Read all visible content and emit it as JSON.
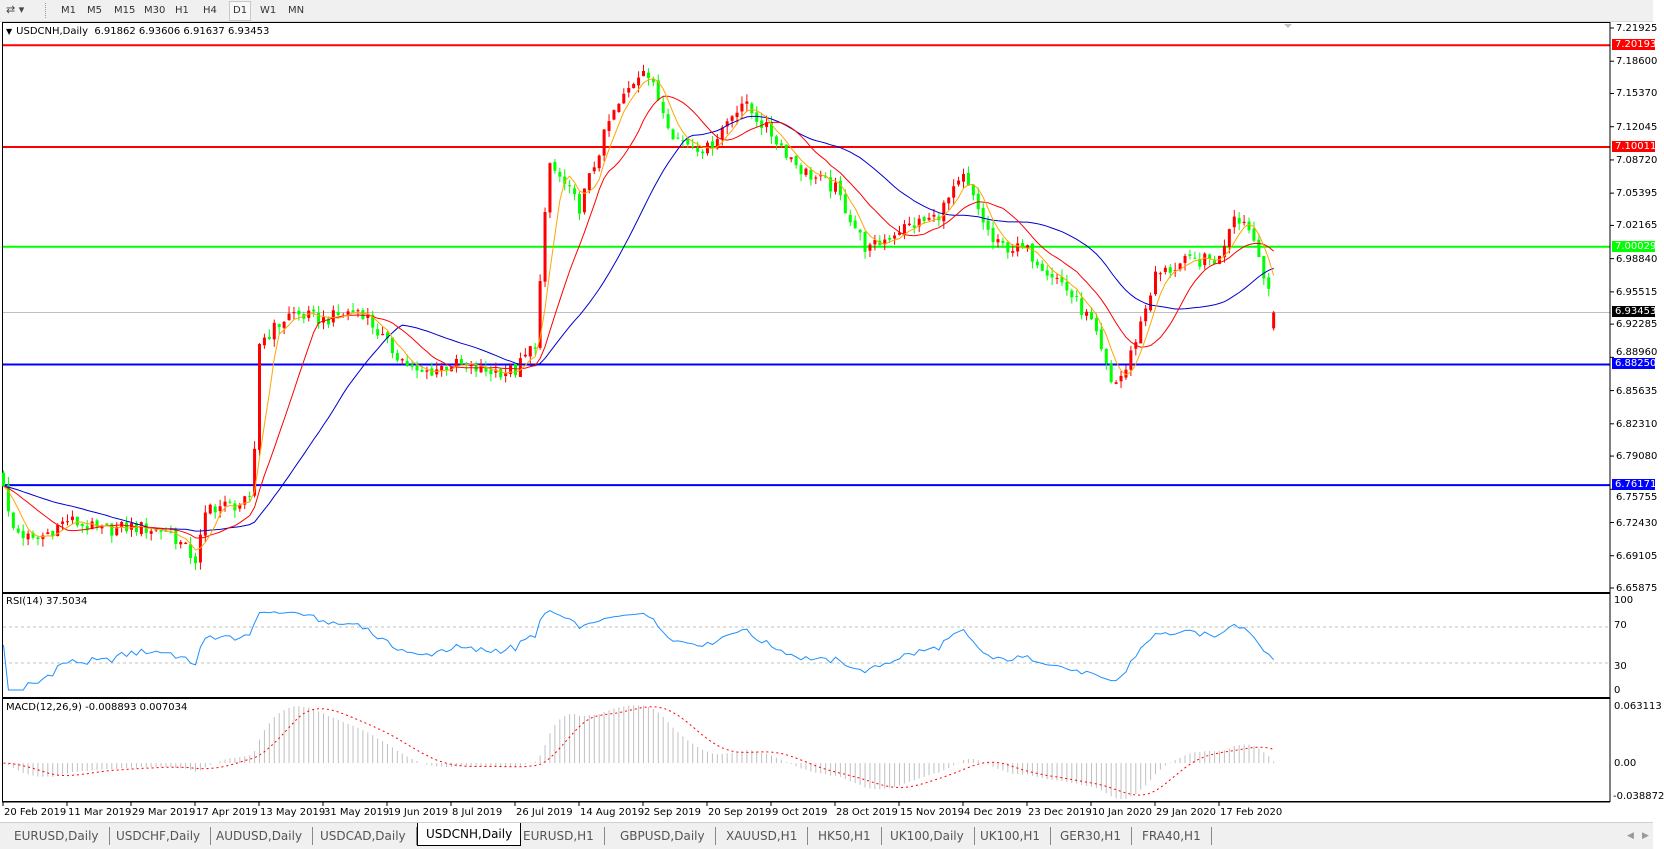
{
  "toolbar": {
    "chart_tools_icon": "line-tools-icon",
    "timeframes": [
      {
        "label": "M1",
        "active": false
      },
      {
        "label": "M5",
        "active": false
      },
      {
        "label": "M15",
        "active": false
      },
      {
        "label": "M30",
        "active": false
      },
      {
        "label": "H1",
        "active": false
      },
      {
        "label": "H4",
        "active": false
      },
      {
        "label": "D1",
        "active": true
      },
      {
        "label": "W1",
        "active": false
      },
      {
        "label": "MN",
        "active": false
      }
    ]
  },
  "chart": {
    "symbol_label": "USDCNH,Daily",
    "ohlc_label": "6.91862 6.93606 6.91637 6.93453",
    "price_ticks": [
      "7.21925",
      "7.18600",
      "7.15370",
      "7.12045",
      "7.08720",
      "7.05395",
      "7.02165",
      "6.98840",
      "6.95515",
      "6.92285",
      "6.88960",
      "6.85635",
      "6.82310",
      "6.79080",
      "6.75755",
      "6.72430",
      "6.69105",
      "6.65875"
    ],
    "levels": [
      {
        "label": "7.20193",
        "price": 7.20193,
        "color": "#ff0000"
      },
      {
        "label": "7.10011",
        "price": 7.10011,
        "color": "#ff0000"
      },
      {
        "label": "7.00029",
        "price": 7.00029,
        "color": "#00ff00"
      },
      {
        "label": "6.88250",
        "price": 6.8825,
        "color": "#0000ff"
      },
      {
        "label": "6.76171",
        "price": 6.76171,
        "color": "#0000ff"
      }
    ],
    "current_price": {
      "label": "6.93453",
      "price": 6.93453,
      "color": "#000000"
    },
    "colors": {
      "bull_candle": "#ff0000",
      "bear_candle": "#00ff00",
      "ma_fast": "#ffa500",
      "ma_mid": "#ff0000",
      "ma_slow": "#0000cd"
    }
  },
  "rsi": {
    "label": "RSI(14) 37.5034",
    "scale_labels": [
      "100",
      "70",
      "30",
      "0"
    ],
    "color": "#1e90ff"
  },
  "macd": {
    "label": "MACD(12,26,9) -0.008893 0.007034",
    "scale_labels": [
      "0.063113",
      "0.00",
      "-0.038872"
    ],
    "histogram_color": "#c0c0c0",
    "signal_color": "#ff0000"
  },
  "date_axis": [
    "20 Feb 2019",
    "11 Mar 2019",
    "29 Mar 2019",
    "17 Apr 2019",
    "13 May 2019",
    "31 May 2019",
    "19 Jun 2019",
    "8 Jul 2019",
    "26 Jul 2019",
    "14 Aug 2019",
    "2 Sep 2019",
    "20 Sep 2019",
    "9 Oct 2019",
    "28 Oct 2019",
    "15 Nov 2019",
    "4 Dec 2019",
    "23 Dec 2019",
    "10 Jan 2020",
    "29 Jan 2020",
    "17 Feb 2020"
  ],
  "tabs": [
    {
      "label": "EURUSD,Daily",
      "active": false
    },
    {
      "label": "USDCHF,Daily",
      "active": false
    },
    {
      "label": "AUDUSD,Daily",
      "active": false
    },
    {
      "label": "USDCAD,Daily",
      "active": false
    },
    {
      "label": "USDCNH,Daily",
      "active": true
    },
    {
      "label": "EURUSD,H1",
      "active": false
    },
    {
      "label": "GBPUSD,Daily",
      "active": false
    },
    {
      "label": "XAUUSD,H1",
      "active": false
    },
    {
      "label": "HK50,H1",
      "active": false
    },
    {
      "label": "UK100,Daily",
      "active": false
    },
    {
      "label": "UK100,H1",
      "active": false
    },
    {
      "label": "GER30,H1",
      "active": false
    },
    {
      "label": "FRA40,H1",
      "active": false
    }
  ],
  "chart_data": {
    "type": "candlestick",
    "symbol": "USDCNH,Daily",
    "last_bar": {
      "open": 6.91862,
      "high": 6.93606,
      "low": 6.91637,
      "close": 6.93453
    },
    "ylim": [
      6.65875,
      7.21925
    ],
    "close_path": [
      {
        "date": "20 Feb 2019",
        "close": 6.765
      },
      {
        "date": "22 Feb 2019",
        "close": 6.72
      },
      {
        "date": "1 Mar 2019",
        "close": 6.705
      },
      {
        "date": "11 Mar 2019",
        "close": 6.727
      },
      {
        "date": "20 Mar 2019",
        "close": 6.716
      },
      {
        "date": "29 Mar 2019",
        "close": 6.72
      },
      {
        "date": "9 Apr 2019",
        "close": 6.716
      },
      {
        "date": "17 Apr 2019",
        "close": 6.687
      },
      {
        "date": "22 Apr 2019",
        "close": 6.74
      },
      {
        "date": "30 Apr 2019",
        "close": 6.741
      },
      {
        "date": "10 May 2019",
        "close": 6.745
      },
      {
        "date": "13 May 2019",
        "close": 6.905
      },
      {
        "date": "22 May 2019",
        "close": 6.934
      },
      {
        "date": "31 May 2019",
        "close": 6.927
      },
      {
        "date": "11 Jun 2019",
        "close": 6.938
      },
      {
        "date": "19 Jun 2019",
        "close": 6.902
      },
      {
        "date": "28 Jun 2019",
        "close": 6.872
      },
      {
        "date": "8 Jul 2019",
        "close": 6.883
      },
      {
        "date": "17 Jul 2019",
        "close": 6.876
      },
      {
        "date": "26 Jul 2019",
        "close": 6.876
      },
      {
        "date": "1 Aug 2019",
        "close": 6.905
      },
      {
        "date": "5 Aug 2019",
        "close": 7.084
      },
      {
        "date": "14 Aug 2019",
        "close": 7.04
      },
      {
        "date": "23 Aug 2019",
        "close": 7.127
      },
      {
        "date": "2 Sep 2019",
        "close": 7.182
      },
      {
        "date": "11 Sep 2019",
        "close": 7.109
      },
      {
        "date": "20 Sep 2019",
        "close": 7.098
      },
      {
        "date": "30 Sep 2019",
        "close": 7.146
      },
      {
        "date": "9 Oct 2019",
        "close": 7.113
      },
      {
        "date": "18 Oct 2019",
        "close": 7.077
      },
      {
        "date": "28 Oct 2019",
        "close": 7.058
      },
      {
        "date": "6 Nov 2019",
        "close": 6.996
      },
      {
        "date": "15 Nov 2019",
        "close": 7.018
      },
      {
        "date": "26 Nov 2019",
        "close": 7.03
      },
      {
        "date": "4 Dec 2019",
        "close": 7.069
      },
      {
        "date": "13 Dec 2019",
        "close": 7.003
      },
      {
        "date": "23 Dec 2019",
        "close": 6.996
      },
      {
        "date": "2 Jan 2020",
        "close": 6.963
      },
      {
        "date": "10 Jan 2020",
        "close": 6.924
      },
      {
        "date": "16 Jan 2020",
        "close": 6.862
      },
      {
        "date": "20 Jan 2020",
        "close": 6.875
      },
      {
        "date": "29 Jan 2020",
        "close": 6.971
      },
      {
        "date": "7 Feb 2020",
        "close": 6.985
      },
      {
        "date": "17 Feb 2020",
        "close": 6.988
      },
      {
        "date": "21 Feb 2020",
        "close": 7.035
      },
      {
        "date": "26 Feb 2020",
        "close": 7.02
      },
      {
        "date": "5 Mar 2020",
        "close": 6.93453
      }
    ]
  }
}
